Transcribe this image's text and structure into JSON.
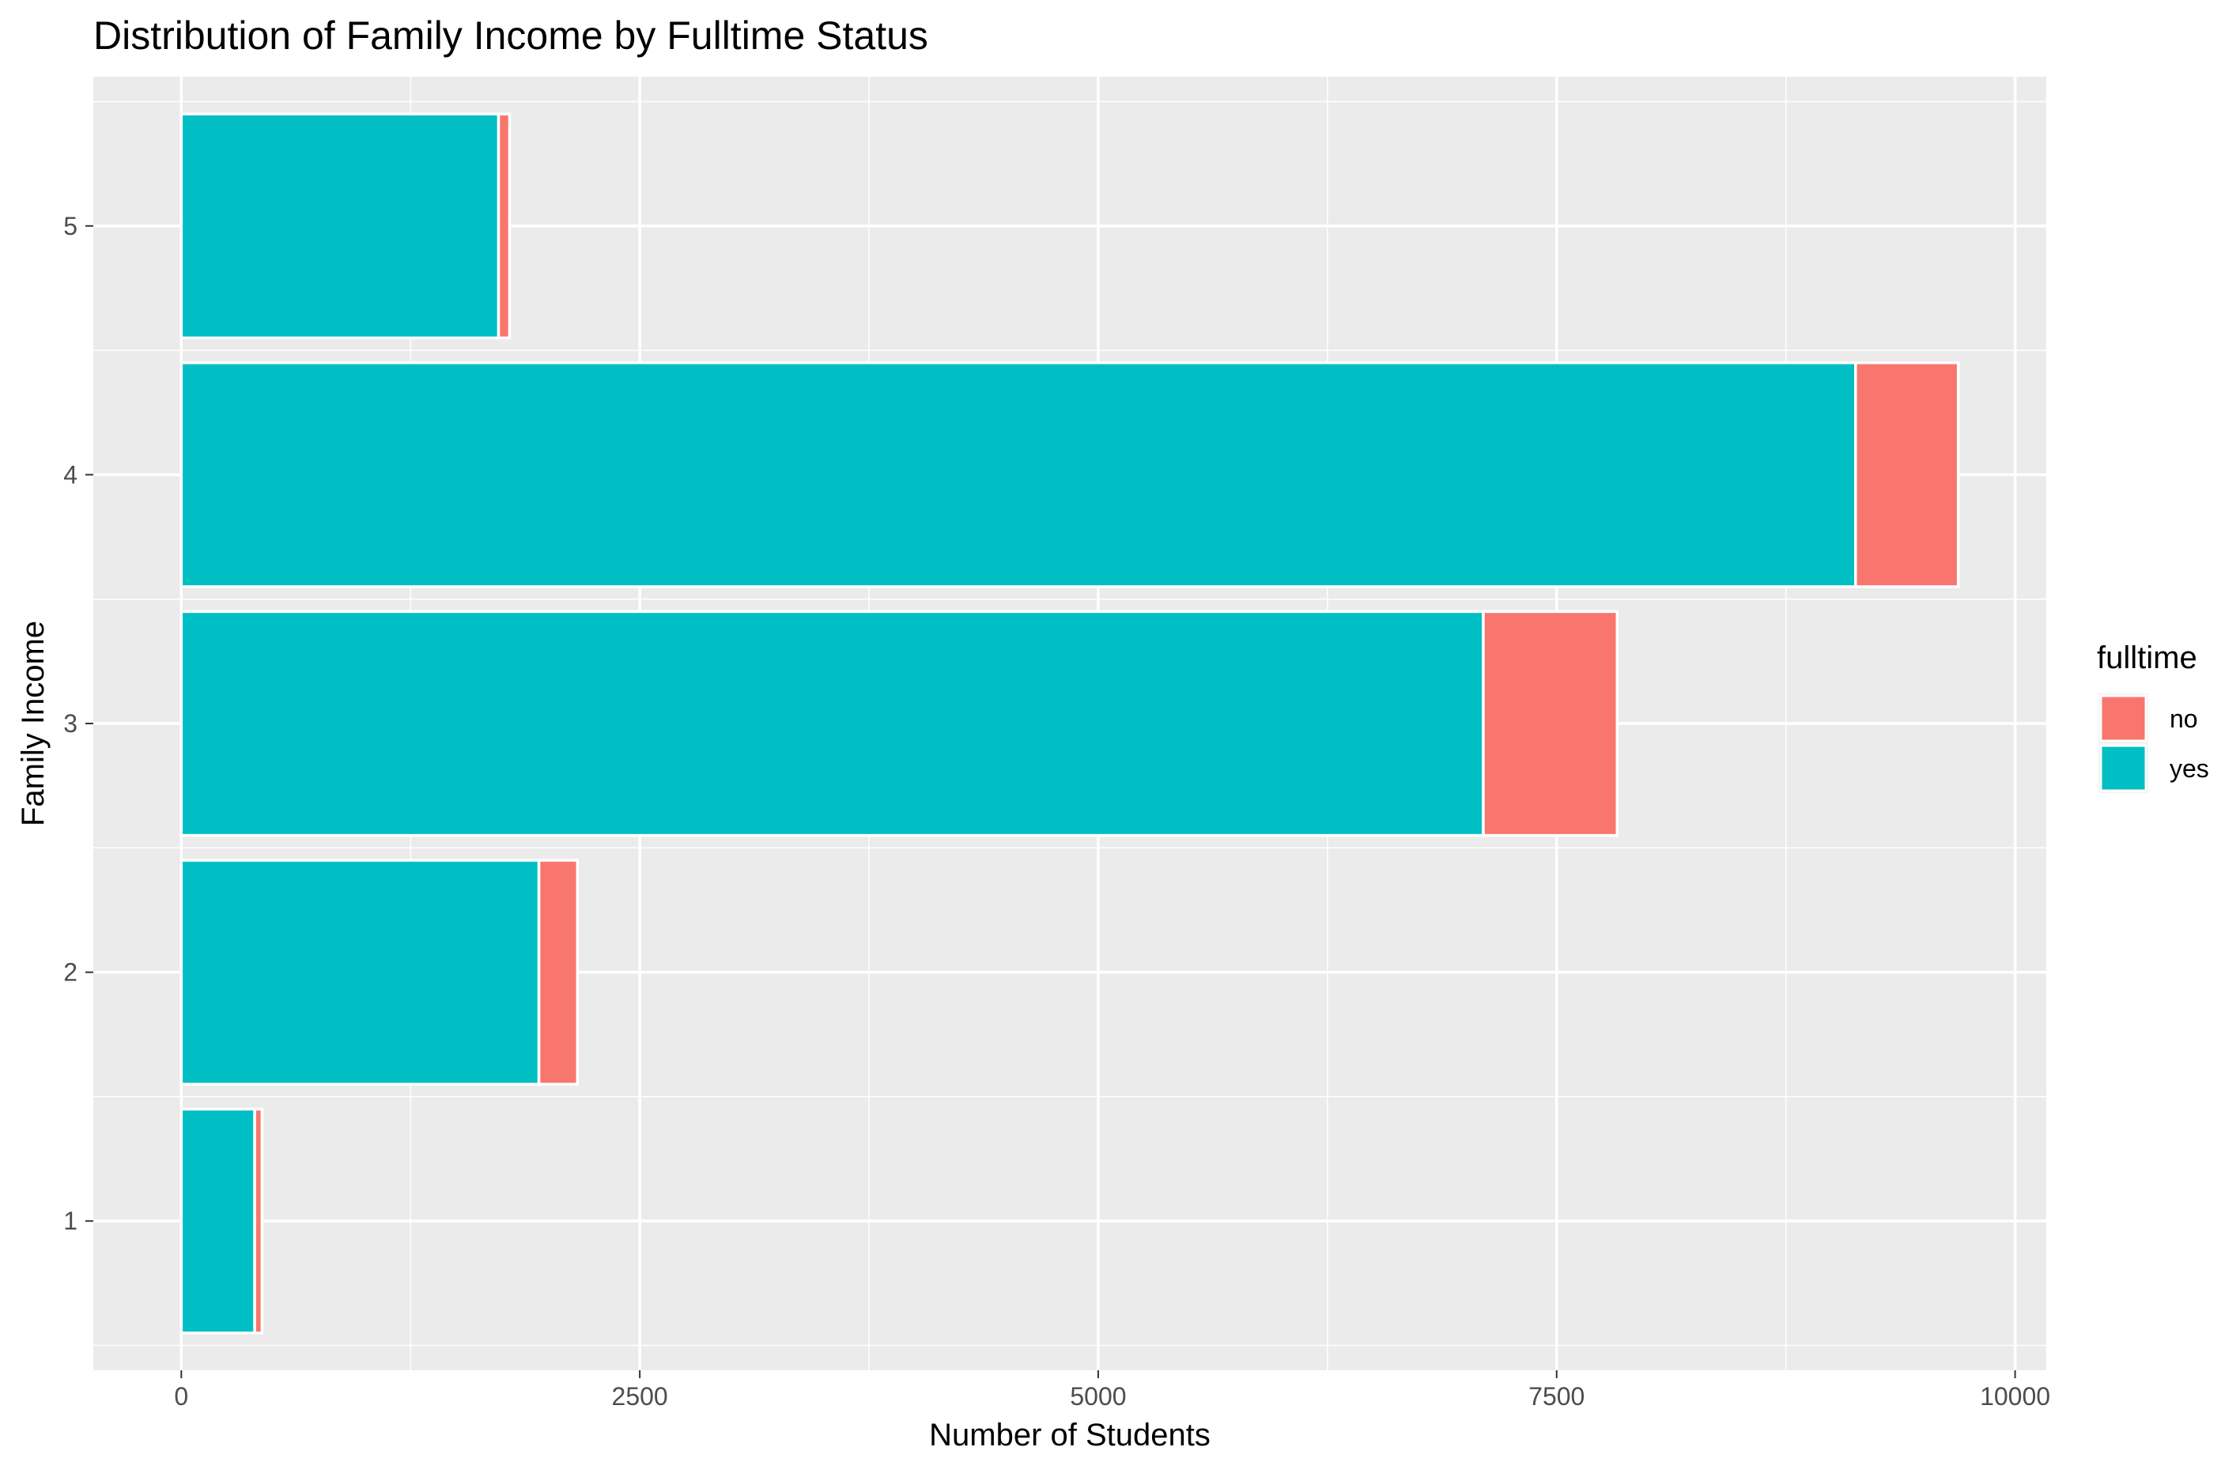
{
  "chart_data": {
    "type": "bar",
    "orientation": "horizontal",
    "stacked": true,
    "title": "Distribution of Family Income by Fulltime Status",
    "xlabel": "Number of Students",
    "ylabel": "Family Income",
    "categories": [
      "1",
      "2",
      "3",
      "4",
      "5"
    ],
    "series": [
      {
        "name": "yes",
        "color": "#00BFC4",
        "values": [
          400,
          1950,
          7100,
          9130,
          1730
        ]
      },
      {
        "name": "no",
        "color": "#F8766D",
        "values": [
          40,
          210,
          730,
          560,
          60
        ]
      }
    ],
    "xlim": [
      -480,
      10170
    ],
    "xticks": [
      0,
      2500,
      5000,
      7500,
      10000
    ],
    "x_minor_ticks": [
      1250,
      3750,
      6250,
      8750
    ],
    "grid": true,
    "legend": {
      "title": "fulltime",
      "position": "right",
      "order": [
        "no",
        "yes"
      ]
    },
    "colors": {
      "panel": "#EBEBEB",
      "grid": "#FFFFFF",
      "bar_outline": "#FFFFFF",
      "tick": "#333333",
      "tick_label": "#4d4d4d"
    }
  }
}
